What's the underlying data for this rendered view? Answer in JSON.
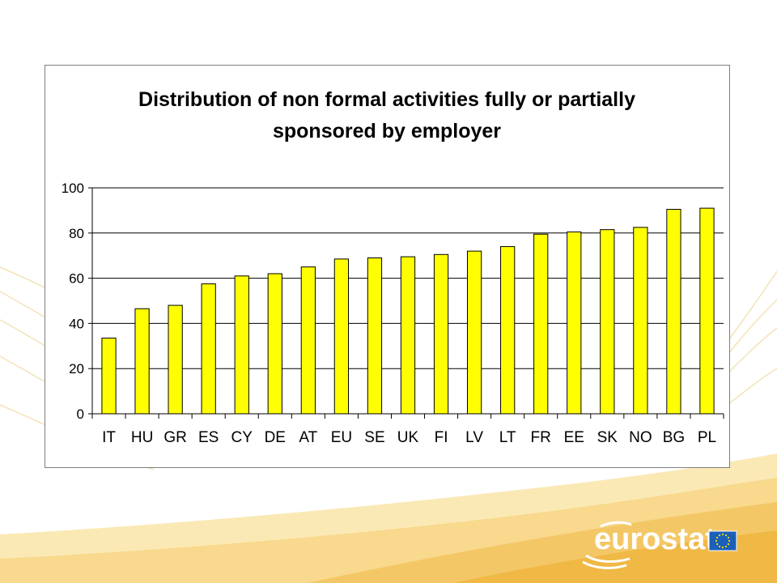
{
  "chart_data": {
    "type": "bar",
    "title_lines": [
      "Distribution of non formal activities fully or partially",
      "sponsored by employer"
    ],
    "xlabel": "",
    "ylabel": "",
    "ylim": [
      0,
      100
    ],
    "yticks": [
      0,
      20,
      40,
      60,
      80,
      100
    ],
    "grid": true,
    "legend": "none",
    "categories": [
      "IT",
      "HU",
      "GR",
      "ES",
      "CY",
      "DE",
      "AT",
      "EU",
      "SE",
      "UK",
      "FI",
      "LV",
      "LT",
      "FR",
      "EE",
      "SK",
      "NO",
      "BG",
      "PL"
    ],
    "values": [
      33.5,
      46.5,
      48,
      57.5,
      61,
      62,
      65,
      68.5,
      69,
      69.5,
      70.5,
      72,
      74,
      79.5,
      80.5,
      81.5,
      82.5,
      90.5,
      91
    ],
    "bar_color": "#ffff00",
    "bar_border_color": "#000000"
  },
  "logo": {
    "text": "eurostat",
    "flag_color": "#1b5fb8",
    "star_color": "#ffe000"
  }
}
